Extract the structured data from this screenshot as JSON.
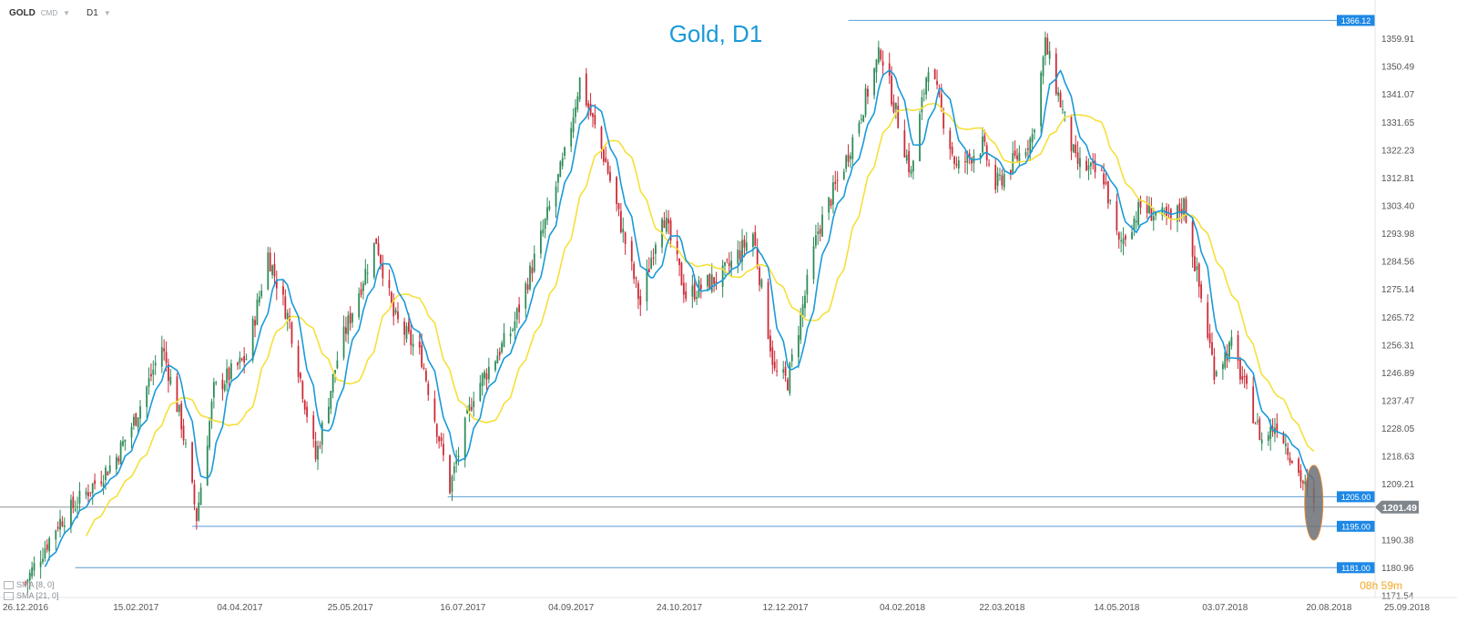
{
  "toolbar": {
    "symbol": "GOLD",
    "market": "CMD",
    "timeframe": "D1"
  },
  "indicators": [
    {
      "label": "SMA [8, 0]",
      "color": "#1a9ad9"
    },
    {
      "label": "SMA [21, 0]",
      "color": "#f5e03a"
    }
  ],
  "timer": {
    "hours": "08",
    "h": "h",
    "minutes": "59",
    "m": "m"
  },
  "chart_data": {
    "type": "candlestick",
    "title": "Gold, D1",
    "ylim": [
      1171.54,
      1369.33
    ],
    "yticks": [
      1359.91,
      1350.49,
      1341.07,
      1331.65,
      1322.23,
      1312.81,
      1303.4,
      1293.98,
      1284.56,
      1275.14,
      1265.72,
      1256.31,
      1246.89,
      1237.47,
      1228.05,
      1218.63,
      1209.21,
      1190.38,
      1180.96,
      1171.54
    ],
    "x_dates": [
      "2016-12-26",
      "2018-09-25"
    ],
    "xticks": [
      {
        "date": "2016-12-26",
        "label": "26.12.2016"
      },
      {
        "date": "2017-02-15",
        "label": "15.02.2017"
      },
      {
        "date": "2017-04-04",
        "label": "04.04.2017"
      },
      {
        "date": "2017-05-25",
        "label": "25.05.2017"
      },
      {
        "date": "2017-07-16",
        "label": "16.07.2017"
      },
      {
        "date": "2017-09-04",
        "label": "04.09.2017"
      },
      {
        "date": "2017-10-24",
        "label": "24.10.2017"
      },
      {
        "date": "2017-12-12",
        "label": "12.12.2017"
      },
      {
        "date": "2018-02-04",
        "label": "04.02.2018"
      },
      {
        "date": "2018-03-22",
        "label": "22.03.2018"
      },
      {
        "date": "2018-05-14",
        "label": "14.05.2018"
      },
      {
        "date": "2018-07-03",
        "label": "03.07.2018"
      },
      {
        "date": "2018-08-20",
        "label": "20.08.2018"
      },
      {
        "date": "2018-09-25",
        "label": "25.09.2018"
      }
    ],
    "price_path": [
      {
        "date": "2016-12-26",
        "close": 1176
      },
      {
        "date": "2017-01-10",
        "close": 1196
      },
      {
        "date": "2017-01-25",
        "close": 1208
      },
      {
        "date": "2017-02-05",
        "close": 1217
      },
      {
        "date": "2017-02-15",
        "close": 1232
      },
      {
        "date": "2017-02-27",
        "close": 1256
      },
      {
        "date": "2017-03-08",
        "close": 1230
      },
      {
        "date": "2017-03-15",
        "close": 1198
      },
      {
        "date": "2017-03-23",
        "close": 1241
      },
      {
        "date": "2017-04-07",
        "close": 1252
      },
      {
        "date": "2017-04-17",
        "close": 1287
      },
      {
        "date": "2017-04-27",
        "close": 1264
      },
      {
        "date": "2017-05-09",
        "close": 1218
      },
      {
        "date": "2017-05-20",
        "close": 1255
      },
      {
        "date": "2017-06-06",
        "close": 1292
      },
      {
        "date": "2017-06-14",
        "close": 1266
      },
      {
        "date": "2017-06-27",
        "close": 1252
      },
      {
        "date": "2017-07-10",
        "close": 1208
      },
      {
        "date": "2017-07-21",
        "close": 1240
      },
      {
        "date": "2017-08-08",
        "close": 1262
      },
      {
        "date": "2017-08-20",
        "close": 1290
      },
      {
        "date": "2017-09-01",
        "close": 1320
      },
      {
        "date": "2017-09-08",
        "close": 1346
      },
      {
        "date": "2017-09-20",
        "close": 1318
      },
      {
        "date": "2017-10-06",
        "close": 1270
      },
      {
        "date": "2017-10-16",
        "close": 1302
      },
      {
        "date": "2017-10-27",
        "close": 1273
      },
      {
        "date": "2017-11-13",
        "close": 1280
      },
      {
        "date": "2017-11-27",
        "close": 1294
      },
      {
        "date": "2017-12-07",
        "close": 1247
      },
      {
        "date": "2017-12-13",
        "close": 1244
      },
      {
        "date": "2017-12-27",
        "close": 1295
      },
      {
        "date": "2018-01-09",
        "close": 1319
      },
      {
        "date": "2018-01-25",
        "close": 1356
      },
      {
        "date": "2018-02-08",
        "close": 1314
      },
      {
        "date": "2018-02-16",
        "close": 1352
      },
      {
        "date": "2018-03-01",
        "close": 1316
      },
      {
        "date": "2018-03-13",
        "close": 1324
      },
      {
        "date": "2018-03-19",
        "close": 1310
      },
      {
        "date": "2018-04-05",
        "close": 1327
      },
      {
        "date": "2018-04-11",
        "close": 1358
      },
      {
        "date": "2018-04-25",
        "close": 1318
      },
      {
        "date": "2018-05-08",
        "close": 1313
      },
      {
        "date": "2018-05-15",
        "close": 1290
      },
      {
        "date": "2018-05-25",
        "close": 1303
      },
      {
        "date": "2018-06-08",
        "close": 1298
      },
      {
        "date": "2018-06-14",
        "close": 1304
      },
      {
        "date": "2018-06-28",
        "close": 1248
      },
      {
        "date": "2018-07-06",
        "close": 1256
      },
      {
        "date": "2018-07-20",
        "close": 1224
      },
      {
        "date": "2018-07-27",
        "close": 1230
      },
      {
        "date": "2018-08-09",
        "close": 1208
      },
      {
        "date": "2018-08-13",
        "close": 1201
      }
    ],
    "level_lines": [
      {
        "value": 1366.12,
        "label": "1366.12",
        "from_date": "2018-01-10"
      },
      {
        "value": 1205.0,
        "label": "1205.00",
        "from_date": "2017-07-09"
      },
      {
        "value": 1195.0,
        "label": "1195.00",
        "from_date": "2017-03-13"
      },
      {
        "value": 1181.0,
        "label": "1181.00",
        "from_date": "2017-01-18"
      }
    ],
    "current_price": {
      "value": 1201.49,
      "label": "1201.49"
    },
    "highlight": {
      "date": "2018-08-13",
      "value": 1203
    },
    "series": [
      {
        "name": "SMA [8, 0]",
        "color": "#1a9ad9"
      },
      {
        "name": "SMA [21, 0]",
        "color": "#f5e03a"
      }
    ],
    "colors": {
      "up": "#2e8b57",
      "down": "#cc2a36",
      "level": "#5b9bd5",
      "current": "#8e959b",
      "title": "#1a9ad9"
    }
  }
}
